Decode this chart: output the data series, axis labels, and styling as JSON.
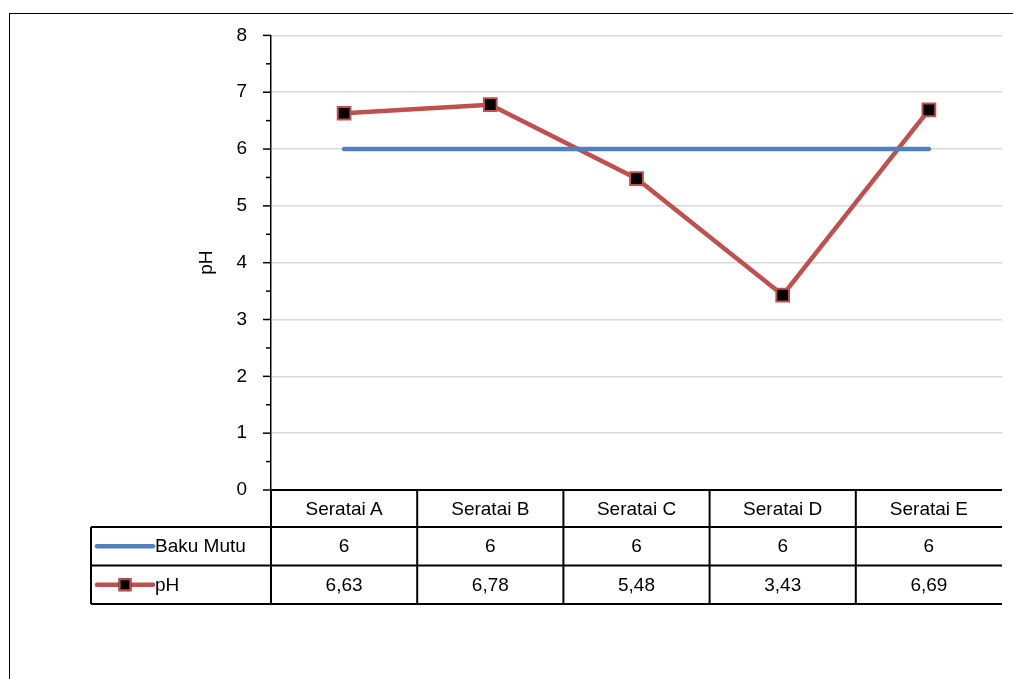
{
  "chart_data": {
    "type": "line",
    "ylabel": "pH",
    "categories": [
      "Seratai A",
      "Seratai B",
      "Seratai C",
      "Seratai D",
      "Seratai E"
    ],
    "series": [
      {
        "name": "Baku Mutu",
        "color": "#4f81bd",
        "values": [
          6,
          6,
          6,
          6,
          6
        ],
        "value_labels": [
          "6",
          "6",
          "6",
          "6",
          "6"
        ],
        "marker": "none"
      },
      {
        "name": "pH",
        "color": "#c0504d",
        "values": [
          6.63,
          6.78,
          5.48,
          3.43,
          6.69
        ],
        "value_labels": [
          "6,63",
          "6,78",
          "5,48",
          "3,43",
          "6,69"
        ],
        "marker": "square"
      }
    ],
    "ylim": [
      0,
      8
    ],
    "yticks": [
      0,
      {
        "value": 0.5,
        "label": null
      },
      1,
      {
        "value": 1.5,
        "label": null
      },
      2,
      {
        "value": 2.5,
        "label": null
      },
      3,
      {
        "value": 3.5,
        "label": null
      },
      4,
      {
        "value": 4.5,
        "label": null
      },
      5,
      {
        "value": 5.5,
        "label": null
      },
      6,
      {
        "value": 6.5,
        "label": null
      },
      7,
      {
        "value": 7.5,
        "label": null
      },
      8
    ],
    "grid": "y",
    "legend": "bottom"
  }
}
